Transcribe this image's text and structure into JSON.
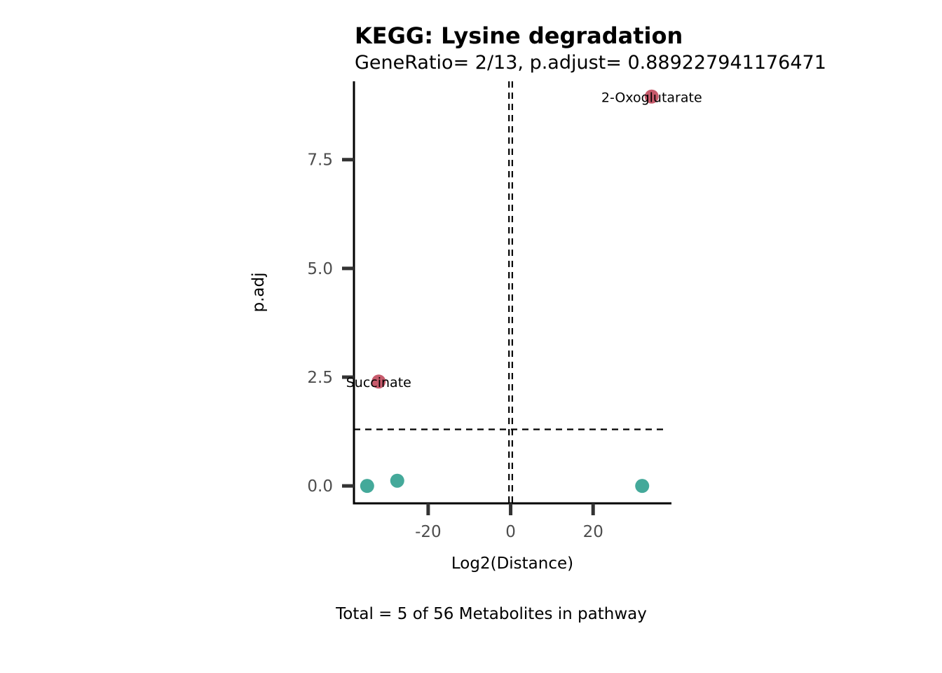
{
  "chart_data": {
    "type": "scatter",
    "title": "KEGG: Lysine degradation",
    "subtitle": "GeneRatio= 2/13, p.adjust= 0.889227941176471",
    "xlabel": "Log2(Distance)",
    "ylabel": "p.adj",
    "caption": "Total = 5 of 56 Metabolites in pathway",
    "xlim": [
      -38,
      39
    ],
    "ylim": [
      -0.4,
      9.3
    ],
    "x_ticks": [
      {
        "value": -20,
        "label": "-20"
      },
      {
        "value": 0,
        "label": "0"
      },
      {
        "value": 20,
        "label": "20"
      }
    ],
    "y_ticks": [
      {
        "value": 0.0,
        "label": "0.0"
      },
      {
        "value": 2.5,
        "label": "2.5"
      },
      {
        "value": 5.0,
        "label": "5.0"
      },
      {
        "value": 7.5,
        "label": "7.5"
      }
    ],
    "reference_lines": {
      "vertical": [
        -0.4,
        0.4
      ],
      "horizontal": [
        1.3
      ]
    },
    "colors": {
      "significant": "#c75b6c",
      "not_significant": "#44a99a"
    },
    "grid": false,
    "legend": "none",
    "points": [
      {
        "x": 34.2,
        "y": 8.95,
        "color": "significant",
        "label": "2-Oxoglutarate"
      },
      {
        "x": -32.0,
        "y": 2.4,
        "color": "significant",
        "label": "Succinate"
      },
      {
        "x": -34.8,
        "y": 0.0,
        "color": "not_significant",
        "label": ""
      },
      {
        "x": -27.5,
        "y": 0.12,
        "color": "not_significant",
        "label": ""
      },
      {
        "x": 31.9,
        "y": 0.0,
        "color": "not_significant",
        "label": ""
      }
    ]
  }
}
